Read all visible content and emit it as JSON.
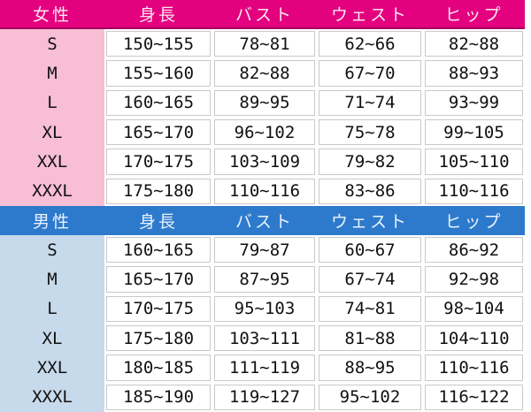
{
  "colors": {
    "women_header_bg": "#e3017f",
    "women_label_bg": "#f7bed4",
    "men_header_bg": "#2d7acd",
    "men_label_bg": "#c6daeb",
    "cell_border": "#c9c9c9",
    "data_text": "#111111"
  },
  "chart_data": [
    {
      "type": "table",
      "group_label": "女性",
      "columns": [
        "身長",
        "バスト",
        "ウェスト",
        "ヒップ"
      ],
      "sizes": [
        "S",
        "M",
        "L",
        "XL",
        "XXL",
        "XXXL"
      ],
      "rows": [
        [
          "150∼155",
          "78∼81",
          "62∼66",
          "82∼88"
        ],
        [
          "155∼160",
          "82∼88",
          "67∼70",
          "88∼93"
        ],
        [
          "160∼165",
          "89∼95",
          "71∼74",
          "93∼99"
        ],
        [
          "165∼170",
          "96∼102",
          "75∼78",
          "99∼105"
        ],
        [
          "170∼175",
          "103∼109",
          "79∼82",
          "105∼110"
        ],
        [
          "175∼180",
          "110∼116",
          "83∼86",
          "110∼116"
        ]
      ]
    },
    {
      "type": "table",
      "group_label": "男性",
      "columns": [
        "身長",
        "バスト",
        "ウェスト",
        "ヒップ"
      ],
      "sizes": [
        "S",
        "M",
        "L",
        "XL",
        "XXL",
        "XXXL"
      ],
      "rows": [
        [
          "160∼165",
          "79∼87",
          "60∼67",
          "86∼92"
        ],
        [
          "165∼170",
          "87∼95",
          "67∼74",
          "92∼98"
        ],
        [
          "170∼175",
          "95∼103",
          "74∼81",
          "98∼104"
        ],
        [
          "175∼180",
          "103∼111",
          "81∼88",
          "104∼110"
        ],
        [
          "180∼185",
          "111∼119",
          "88∼95",
          "110∼116"
        ],
        [
          "185∼190",
          "119∼127",
          "95∼102",
          "116∼122"
        ]
      ]
    }
  ]
}
